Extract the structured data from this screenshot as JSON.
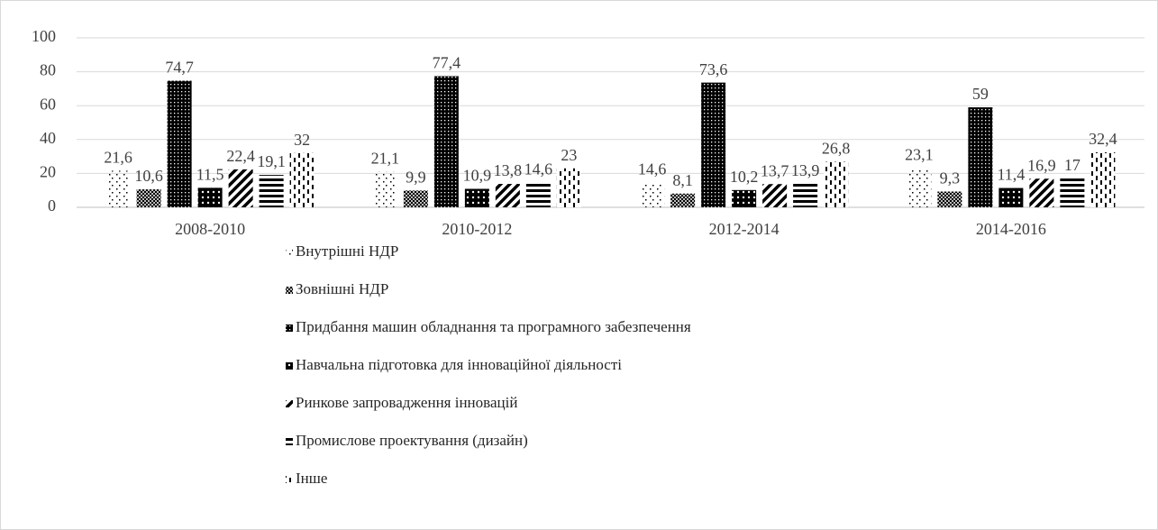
{
  "chart_data": {
    "type": "bar",
    "categories": [
      "2008-2010",
      "2010-2012",
      "2012-2014",
      "2014-2016"
    ],
    "series": [
      {
        "name": "Внутрішні НДР",
        "color": "#000000",
        "pattern": "dots-sparse",
        "values": [
          21.6,
          21.1,
          14.6,
          23.1
        ],
        "value_labels": [
          "21,6",
          "21,1",
          "14,6",
          "23,1"
        ]
      },
      {
        "name": "Зовнішні НДР",
        "color": "#000000",
        "pattern": "dots-fine",
        "values": [
          10.6,
          9.9,
          8.1,
          9.3
        ],
        "value_labels": [
          "10,6",
          "9,9",
          "8,1",
          "9,3"
        ]
      },
      {
        "name": "Придбання машин обладнання та програмного забезпечення",
        "color": "#000000",
        "pattern": "checker",
        "values": [
          74.7,
          77.4,
          73.6,
          59
        ],
        "value_labels": [
          "74,7",
          "77,4",
          "73,6",
          "59"
        ]
      },
      {
        "name": "Навчальна підготовка для інноваційної діяльності",
        "color": "#000000",
        "pattern": "dots-bold",
        "values": [
          11.5,
          10.9,
          10.2,
          11.4
        ],
        "value_labels": [
          "11,5",
          "10,9",
          "10,2",
          "11,4"
        ]
      },
      {
        "name": "Ринкове запровадження інновацій",
        "color": "#000000",
        "pattern": "diagonal",
        "values": [
          22.4,
          13.8,
          13.7,
          16.9
        ],
        "value_labels": [
          "22,4",
          "13,8",
          "13,7",
          "16,9"
        ]
      },
      {
        "name": "Промислове проектування  (дизайн)",
        "color": "#000000",
        "pattern": "horizontal",
        "values": [
          19.1,
          14.6,
          13.9,
          17
        ],
        "value_labels": [
          "19,1",
          "14,6",
          "13,9",
          "17"
        ]
      },
      {
        "name": "Інше",
        "color": "#000000",
        "pattern": "dashes",
        "values": [
          32,
          23,
          26.8,
          32.4
        ],
        "value_labels": [
          "32",
          "23",
          "26,8",
          "32,4"
        ]
      }
    ],
    "ylim": [
      0,
      100
    ],
    "yticks": [
      0,
      20,
      40,
      60,
      80,
      100
    ],
    "grid": true,
    "legend": "bottom"
  }
}
